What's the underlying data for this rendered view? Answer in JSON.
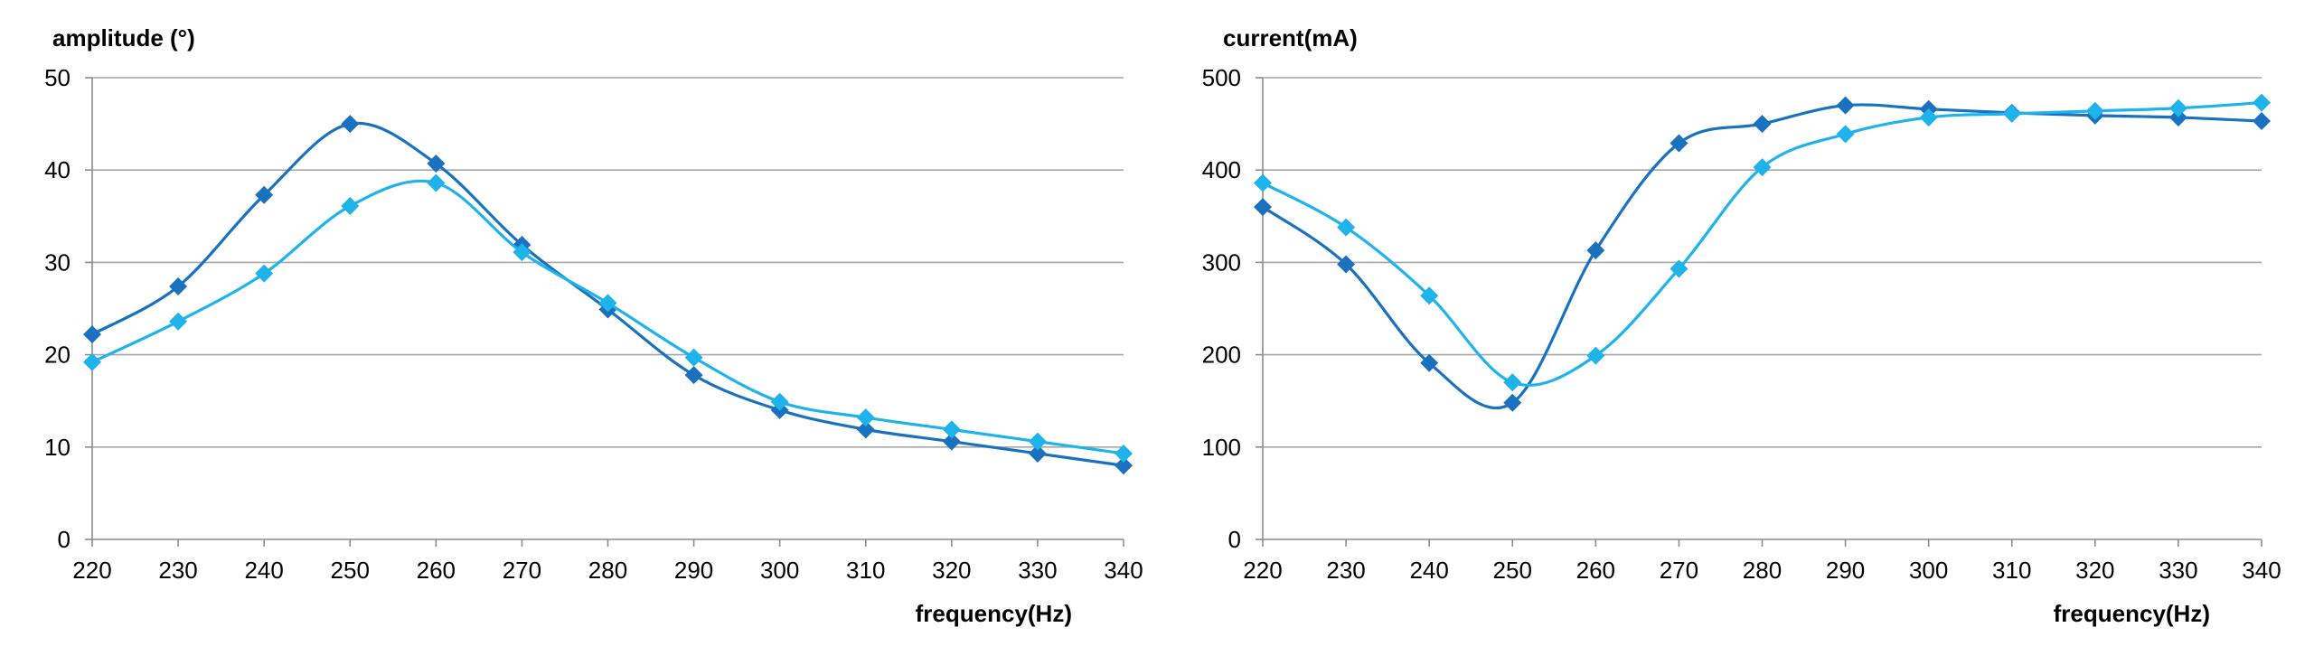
{
  "chart_data": [
    {
      "type": "line",
      "ylabel": "amplitude (°)",
      "xlabel": "frequency(Hz)",
      "x": [
        220,
        230,
        240,
        250,
        260,
        270,
        280,
        290,
        300,
        310,
        320,
        330,
        340
      ],
      "xlim": [
        220,
        340
      ],
      "ylim": [
        0,
        50
      ],
      "yticks": [
        0,
        10,
        20,
        30,
        40,
        50
      ],
      "grid": true,
      "smooth": true,
      "marker": "diamond",
      "series": [
        {
          "color": "#1a72bf",
          "values": [
            22.2,
            27.4,
            37.3,
            45.0,
            40.7,
            31.9,
            24.9,
            17.8,
            14.0,
            11.9,
            10.6,
            9.3,
            8.0
          ]
        },
        {
          "color": "#1eb3ea",
          "values": [
            19.2,
            23.6,
            28.8,
            36.1,
            38.6,
            31.1,
            25.6,
            19.7,
            14.9,
            13.2,
            11.9,
            10.6,
            9.3
          ]
        }
      ]
    },
    {
      "type": "line",
      "ylabel": "current(mA)",
      "xlabel": "frequency(Hz)",
      "x": [
        220,
        230,
        240,
        250,
        260,
        270,
        280,
        290,
        300,
        310,
        320,
        330,
        340
      ],
      "xlim": [
        220,
        340
      ],
      "ylim": [
        0,
        500
      ],
      "yticks": [
        0,
        100,
        200,
        300,
        400,
        500
      ],
      "grid": true,
      "smooth": true,
      "marker": "diamond",
      "series": [
        {
          "color": "#1a72bf",
          "values": [
            360,
            298,
            191,
            148,
            313,
            429,
            450,
            470,
            466,
            462,
            459,
            457,
            453
          ]
        },
        {
          "color": "#1eb3ea",
          "values": [
            386,
            338,
            264,
            170,
            199,
            293,
            403,
            439,
            457,
            461,
            464,
            467,
            473
          ]
        }
      ]
    }
  ]
}
